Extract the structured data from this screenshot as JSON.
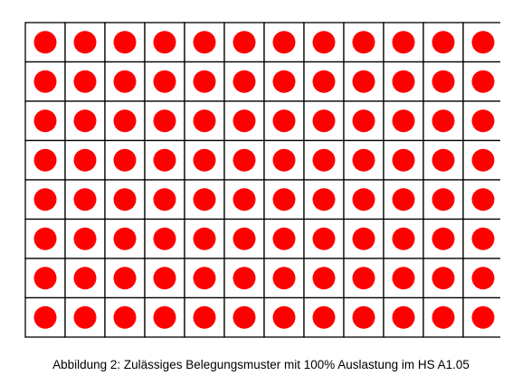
{
  "figure": {
    "caption": "Abbildung 2: Zulässiges Belegungsmuster mit 100% Auslastung im HS A1.05"
  },
  "seating": {
    "rows": 8,
    "columns": 12,
    "occupied_fraction": 1.0,
    "seat_color": "#ff0000",
    "grid_color": "#000000",
    "seats": [
      [
        1,
        1,
        1,
        1,
        1,
        1,
        1,
        1,
        1,
        1,
        1,
        1
      ],
      [
        1,
        1,
        1,
        1,
        1,
        1,
        1,
        1,
        1,
        1,
        1,
        1
      ],
      [
        1,
        1,
        1,
        1,
        1,
        1,
        1,
        1,
        1,
        1,
        1,
        1
      ],
      [
        1,
        1,
        1,
        1,
        1,
        1,
        1,
        1,
        1,
        1,
        1,
        1
      ],
      [
        1,
        1,
        1,
        1,
        1,
        1,
        1,
        1,
        1,
        1,
        1,
        1
      ],
      [
        1,
        1,
        1,
        1,
        1,
        1,
        1,
        1,
        1,
        1,
        1,
        1
      ],
      [
        1,
        1,
        1,
        1,
        1,
        1,
        1,
        1,
        1,
        1,
        1,
        1
      ],
      [
        1,
        1,
        1,
        1,
        1,
        1,
        1,
        1,
        1,
        1,
        1,
        1
      ]
    ]
  }
}
